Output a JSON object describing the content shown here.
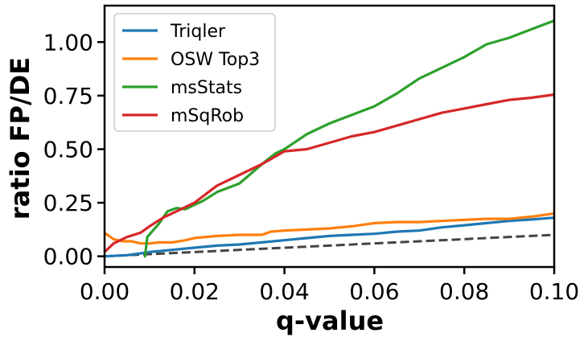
{
  "chart_data": {
    "type": "line",
    "xlabel": "q-value",
    "ylabel": "ratio FP/DE",
    "xlim": [
      0,
      0.1
    ],
    "ylim": [
      -0.05,
      1.17
    ],
    "x_ticks": [
      0.0,
      0.02,
      0.04,
      0.06,
      0.08,
      0.1
    ],
    "x_tick_labels": [
      "0.00",
      "0.02",
      "0.04",
      "0.06",
      "0.08",
      "0.10"
    ],
    "y_ticks": [
      0.0,
      0.25,
      0.5,
      0.75,
      1.0
    ],
    "y_tick_labels": [
      "0.00",
      "0.25",
      "0.50",
      "0.75",
      "1.00"
    ],
    "grid": false,
    "legend_position": "top-left",
    "reference_line": {
      "style": "dashed",
      "color": "#444444",
      "points": [
        [
          0,
          0
        ],
        [
          0.1,
          0.1
        ]
      ]
    },
    "series": [
      {
        "name": "Triqler",
        "color": "#1f77b4",
        "points": [
          [
            0.0,
            0.0
          ],
          [
            0.005,
            0.005
          ],
          [
            0.01,
            0.02
          ],
          [
            0.015,
            0.03
          ],
          [
            0.02,
            0.04
          ],
          [
            0.025,
            0.05
          ],
          [
            0.03,
            0.055
          ],
          [
            0.035,
            0.065
          ],
          [
            0.04,
            0.075
          ],
          [
            0.045,
            0.085
          ],
          [
            0.05,
            0.095
          ],
          [
            0.055,
            0.1
          ],
          [
            0.06,
            0.105
          ],
          [
            0.065,
            0.115
          ],
          [
            0.07,
            0.12
          ],
          [
            0.075,
            0.135
          ],
          [
            0.08,
            0.145
          ],
          [
            0.085,
            0.155
          ],
          [
            0.09,
            0.165
          ],
          [
            0.095,
            0.172
          ],
          [
            0.1,
            0.18
          ]
        ]
      },
      {
        "name": "OSW Top3",
        "color": "#ff7f0e",
        "points": [
          [
            0.0,
            0.11
          ],
          [
            0.002,
            0.08
          ],
          [
            0.004,
            0.07
          ],
          [
            0.006,
            0.07
          ],
          [
            0.008,
            0.06
          ],
          [
            0.01,
            0.06
          ],
          [
            0.012,
            0.065
          ],
          [
            0.015,
            0.065
          ],
          [
            0.018,
            0.075
          ],
          [
            0.02,
            0.085
          ],
          [
            0.025,
            0.095
          ],
          [
            0.03,
            0.1
          ],
          [
            0.035,
            0.1
          ],
          [
            0.037,
            0.115
          ],
          [
            0.04,
            0.12
          ],
          [
            0.045,
            0.125
          ],
          [
            0.05,
            0.13
          ],
          [
            0.055,
            0.14
          ],
          [
            0.06,
            0.155
          ],
          [
            0.065,
            0.16
          ],
          [
            0.07,
            0.16
          ],
          [
            0.075,
            0.165
          ],
          [
            0.08,
            0.17
          ],
          [
            0.085,
            0.175
          ],
          [
            0.09,
            0.175
          ],
          [
            0.095,
            0.185
          ],
          [
            0.1,
            0.2
          ]
        ]
      },
      {
        "name": "msStats",
        "color": "#2ca02c",
        "points": [
          [
            0.009,
            0.0
          ],
          [
            0.0095,
            0.09
          ],
          [
            0.012,
            0.15
          ],
          [
            0.014,
            0.21
          ],
          [
            0.016,
            0.225
          ],
          [
            0.018,
            0.22
          ],
          [
            0.02,
            0.24
          ],
          [
            0.022,
            0.26
          ],
          [
            0.025,
            0.3
          ],
          [
            0.03,
            0.34
          ],
          [
            0.035,
            0.43
          ],
          [
            0.038,
            0.48
          ],
          [
            0.04,
            0.5
          ],
          [
            0.045,
            0.57
          ],
          [
            0.05,
            0.62
          ],
          [
            0.055,
            0.66
          ],
          [
            0.06,
            0.7
          ],
          [
            0.065,
            0.76
          ],
          [
            0.07,
            0.83
          ],
          [
            0.075,
            0.88
          ],
          [
            0.08,
            0.93
          ],
          [
            0.085,
            0.99
          ],
          [
            0.09,
            1.02
          ],
          [
            0.095,
            1.06
          ],
          [
            0.1,
            1.1
          ]
        ]
      },
      {
        "name": "mSqRob",
        "color": "#d62728",
        "points": [
          [
            0.0,
            0.02
          ],
          [
            0.002,
            0.06
          ],
          [
            0.005,
            0.09
          ],
          [
            0.008,
            0.11
          ],
          [
            0.01,
            0.14
          ],
          [
            0.013,
            0.18
          ],
          [
            0.015,
            0.2
          ],
          [
            0.02,
            0.25
          ],
          [
            0.025,
            0.33
          ],
          [
            0.03,
            0.38
          ],
          [
            0.035,
            0.43
          ],
          [
            0.04,
            0.49
          ],
          [
            0.045,
            0.5
          ],
          [
            0.05,
            0.53
          ],
          [
            0.055,
            0.56
          ],
          [
            0.06,
            0.58
          ],
          [
            0.065,
            0.61
          ],
          [
            0.07,
            0.64
          ],
          [
            0.075,
            0.67
          ],
          [
            0.08,
            0.69
          ],
          [
            0.085,
            0.71
          ],
          [
            0.09,
            0.73
          ],
          [
            0.095,
            0.74
          ],
          [
            0.1,
            0.755
          ]
        ]
      }
    ]
  }
}
